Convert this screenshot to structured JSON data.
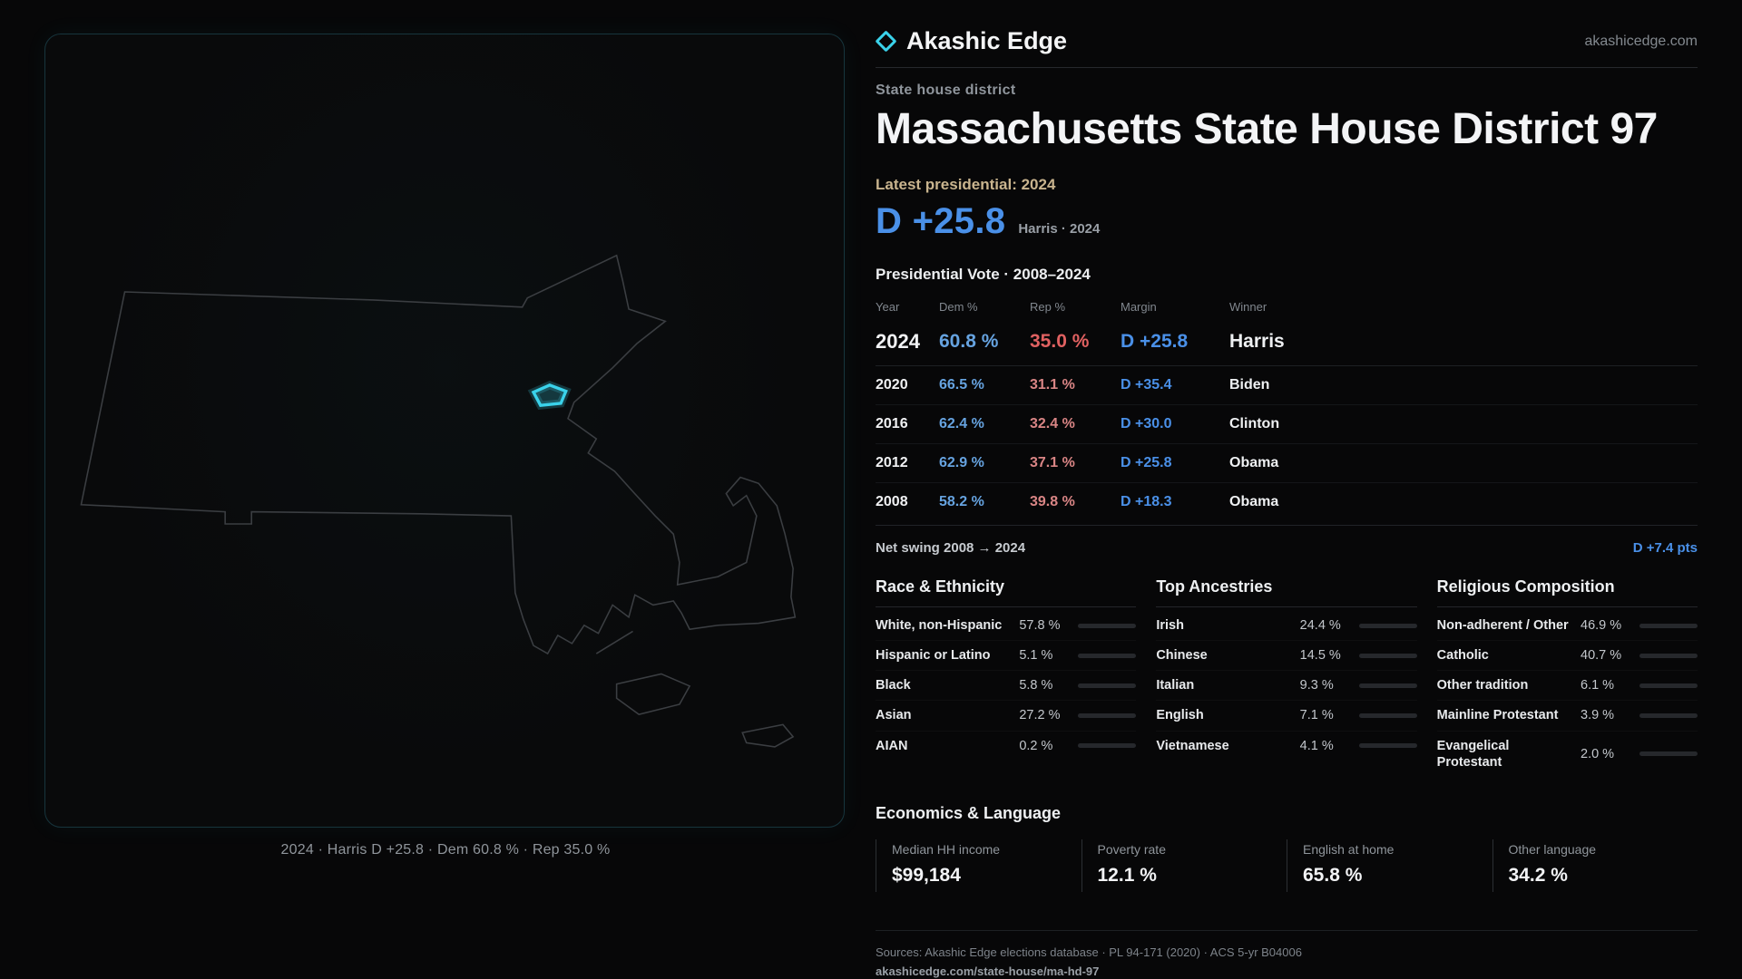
{
  "colors": {
    "accent": "#3ad2ea",
    "dem": "#66a3e0",
    "dem-bright": "#4a90e8",
    "rep": "#e06161",
    "rep-soft": "#d98585",
    "tan": "#c9b48e"
  },
  "header": {
    "brand": "Akashic Edge",
    "site": "akashicedge.com",
    "kicker": "State house district",
    "title": "Massachusetts State House District 97",
    "latest_label": "Latest presidential: 2024",
    "headline_margin": "D +25.8",
    "headline_sub": "Harris · 2024"
  },
  "map": {
    "caption": "2024 · Harris D +25.8 · Dem 60.8 % · Rep 35.0 %"
  },
  "vote_table": {
    "title": "Presidential Vote · 2008–2024",
    "columns": [
      "Year",
      "Dem %",
      "Rep %",
      "Margin",
      "Winner"
    ],
    "rows": [
      {
        "year": "2024",
        "dem": "60.8 %",
        "rep": "35.0 %",
        "margin": "D +25.8",
        "winner": "Harris"
      },
      {
        "year": "2020",
        "dem": "66.5 %",
        "rep": "31.1 %",
        "margin": "D +35.4",
        "winner": "Biden"
      },
      {
        "year": "2016",
        "dem": "62.4 %",
        "rep": "32.4 %",
        "margin": "D +30.0",
        "winner": "Clinton"
      },
      {
        "year": "2012",
        "dem": "62.9 %",
        "rep": "37.1 %",
        "margin": "D +25.8",
        "winner": "Obama"
      },
      {
        "year": "2008",
        "dem": "58.2 %",
        "rep": "39.8 %",
        "margin": "D +18.3",
        "winner": "Obama"
      }
    ],
    "net_swing_label": "Net swing 2008 → 2024",
    "net_swing_value": "D +7.4 pts"
  },
  "demographics": [
    {
      "title": "Race & Ethnicity",
      "rows": [
        {
          "label": "White, non-Hispanic",
          "value": "57.8 %",
          "pct": 57.8,
          "color": "#b6bdc6"
        },
        {
          "label": "Hispanic or Latino",
          "value": "5.1 %",
          "pct": 5.1,
          "color": "#dfa23f"
        },
        {
          "label": "Black",
          "value": "5.8 %",
          "pct": 5.8,
          "color": "#8b7bf0"
        },
        {
          "label": "Asian",
          "value": "27.2 %",
          "pct": 27.2,
          "color": "#35c08b"
        },
        {
          "label": "AIAN",
          "value": "0.2 %",
          "pct": 0.2,
          "color": "#9aa2ab"
        }
      ]
    },
    {
      "title": "Top Ancestries",
      "rows": [
        {
          "label": "Irish",
          "value": "24.4 %",
          "pct": 24.4,
          "color": "#9aa2ab"
        },
        {
          "label": "Chinese",
          "value": "14.5 %",
          "pct": 14.5,
          "color": "#35c08b"
        },
        {
          "label": "Italian",
          "value": "9.3 %",
          "pct": 9.3,
          "color": "#9aa2ab"
        },
        {
          "label": "English",
          "value": "7.1 %",
          "pct": 7.1,
          "color": "#9aa2ab"
        },
        {
          "label": "Vietnamese",
          "value": "4.1 %",
          "pct": 4.1,
          "color": "#35c08b"
        }
      ]
    },
    {
      "title": "Religious Composition",
      "rows": [
        {
          "label": "Non-adherent / Other",
          "value": "46.9 %",
          "pct": 46.9,
          "color": "#9aa2ab"
        },
        {
          "label": "Catholic",
          "value": "40.7 %",
          "pct": 40.7,
          "color": "#d4a43c"
        },
        {
          "label": "Other tradition",
          "value": "6.1 %",
          "pct": 6.1,
          "color": "#9aa2ab"
        },
        {
          "label": "Mainline Protestant",
          "value": "3.9 %",
          "pct": 3.9,
          "color": "#4f93e6"
        },
        {
          "label": "Evangelical Protestant",
          "value": "2.0 %",
          "pct": 2.0,
          "color": "#9aa2ab"
        }
      ]
    }
  ],
  "economics": {
    "title": "Economics & Language",
    "stats": [
      {
        "label": "Median HH income",
        "value": "$99,184"
      },
      {
        "label": "Poverty rate",
        "value": "12.1 %"
      },
      {
        "label": "English at home",
        "value": "65.8 %"
      },
      {
        "label": "Other language",
        "value": "34.2 %"
      }
    ]
  },
  "footer": {
    "sources": "Sources: Akashic Edge elections database · PL 94-171 (2020) · ACS 5-yr B04006",
    "permalink": "akashicedge.com/state-house/ma-hd-97"
  }
}
